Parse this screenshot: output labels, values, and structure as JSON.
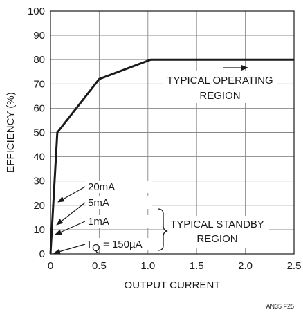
{
  "chart_data": {
    "type": "line",
    "xlabel": "OUTPUT CURRENT",
    "ylabel": "EFFICIENCY (%)",
    "xlim": [
      0,
      2.5
    ],
    "ylim": [
      0,
      100
    ],
    "x_ticks": [
      0,
      0.5,
      1.0,
      1.5,
      2.0,
      2.5
    ],
    "x_tick_labels": [
      "0",
      "0.5",
      "1.0",
      "1.5",
      "2.0",
      "2.5"
    ],
    "y_ticks": [
      0,
      10,
      20,
      30,
      40,
      50,
      60,
      70,
      80,
      90,
      100
    ],
    "y_tick_labels": [
      "0",
      "10",
      "20",
      "30",
      "40",
      "50",
      "60",
      "70",
      "80",
      "90",
      "100"
    ],
    "grid": true,
    "series": [
      {
        "x": [
          0,
          0.07,
          0.5,
          1.03,
          2.5
        ],
        "y": [
          0,
          50,
          72,
          80,
          80
        ]
      }
    ],
    "standby_points": [
      {
        "label": "20mA",
        "y": 20
      },
      {
        "label": "5mA",
        "y": 12
      },
      {
        "label": "1mA",
        "y": 9
      },
      {
        "label": "= 150µA",
        "y": 0,
        "prefix": "I",
        "subscript": "Q"
      }
    ],
    "annotations": {
      "operating_region": [
        "TYPICAL OPERATING",
        "REGION"
      ],
      "standby_region": [
        "TYPICAL STANDBY",
        "REGION"
      ]
    }
  },
  "figure_id": "AN35 F25",
  "colors": {
    "line": "#1a1a1a",
    "grid": "#888888",
    "text": "#1a1a1a"
  }
}
